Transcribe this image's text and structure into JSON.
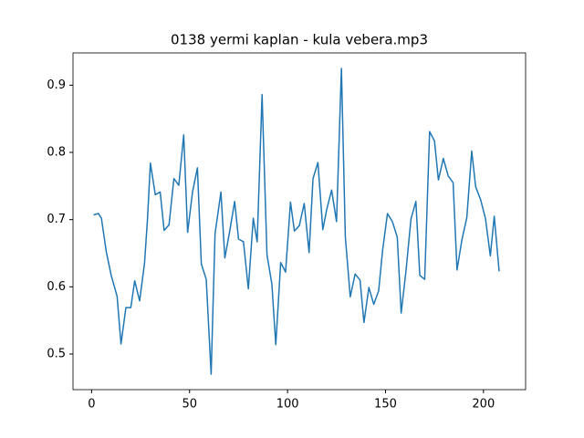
{
  "chart_data": {
    "type": "line",
    "title": "0138 yermi kaplan - kula vebera.mp3",
    "x": [
      1,
      3.5,
      5,
      7.5,
      10,
      13,
      15,
      17.5,
      20,
      22,
      24.5,
      27,
      28.5,
      30,
      32.5,
      35,
      37,
      39.5,
      42,
      44.5,
      47,
      49,
      51.5,
      54,
      56,
      58.5,
      61,
      63,
      66,
      68,
      70.5,
      73,
      75,
      77.5,
      80,
      82.5,
      84.5,
      87,
      89.5,
      92,
      94,
      96.5,
      99,
      101.5,
      103.5,
      106,
      108.5,
      111,
      113,
      115.5,
      118,
      120,
      122.5,
      125,
      127.5,
      129.5,
      132,
      134.5,
      137,
      139,
      141.5,
      144,
      146.5,
      148.5,
      151,
      153.5,
      156,
      158,
      160.5,
      163,
      165.5,
      167.5,
      170,
      172.5,
      175,
      177,
      179.5,
      182,
      184.5,
      186.5,
      189,
      191.5,
      194,
      196,
      198.5,
      201,
      203.5,
      205.5,
      208
    ],
    "series": [
      {
        "color": "#1f77b4",
        "values": [
          0.707,
          0.709,
          0.702,
          0.652,
          0.617,
          0.586,
          0.515,
          0.569,
          0.569,
          0.609,
          0.579,
          0.635,
          0.7,
          0.784,
          0.737,
          0.741,
          0.684,
          0.692,
          0.761,
          0.751,
          0.826,
          0.681,
          0.741,
          0.777,
          0.634,
          0.611,
          0.47,
          0.679,
          0.741,
          0.643,
          0.683,
          0.727,
          0.671,
          0.667,
          0.597,
          0.702,
          0.667,
          0.886,
          0.648,
          0.604,
          0.514,
          0.636,
          0.622,
          0.726,
          0.683,
          0.691,
          0.724,
          0.651,
          0.761,
          0.785,
          0.685,
          0.715,
          0.744,
          0.697,
          0.925,
          0.674,
          0.585,
          0.619,
          0.61,
          0.547,
          0.599,
          0.574,
          0.594,
          0.654,
          0.709,
          0.697,
          0.674,
          0.561,
          0.625,
          0.701,
          0.727,
          0.617,
          0.611,
          0.831,
          0.817,
          0.759,
          0.791,
          0.765,
          0.755,
          0.625,
          0.67,
          0.703,
          0.802,
          0.749,
          0.73,
          0.702,
          0.646,
          0.705,
          0.623
        ]
      }
    ],
    "xlim": [
      -9.5,
      221.5
    ],
    "xticks": [
      0,
      50,
      100,
      150,
      200
    ],
    "ylim": [
      0.447,
      0.948
    ],
    "yticks": [
      0.5,
      0.6,
      0.7,
      0.8,
      0.9
    ]
  }
}
